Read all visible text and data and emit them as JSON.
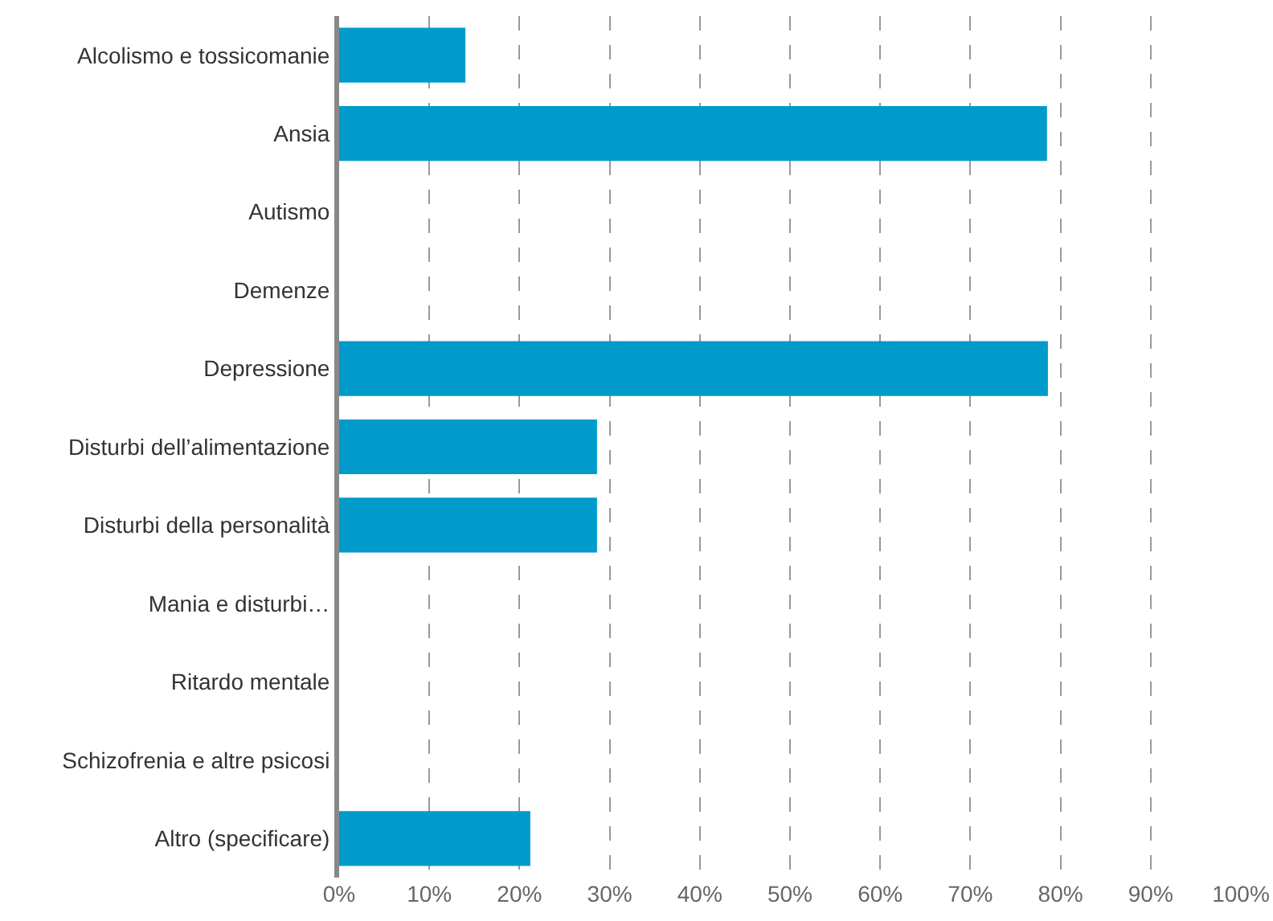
{
  "chart_data": {
    "type": "bar",
    "orientation": "horizontal",
    "categories": [
      "Alcolismo e tossicomanie",
      "Ansia",
      "Autismo",
      "Demenze",
      "Depressione",
      "Disturbi dell’alimentazione",
      "Disturbi della personalità",
      "Mania e disturbi…",
      "Ritardo mentale",
      "Schizofrenia e altre psicosi",
      "Altro (specificare)"
    ],
    "values": [
      14.0,
      78.5,
      0,
      0,
      78.6,
      28.6,
      28.6,
      0,
      0,
      0,
      21.2
    ],
    "color": "#009bcb",
    "xlim": [
      0,
      100
    ],
    "xticks": [
      {
        "value": 0,
        "label": "0%"
      },
      {
        "value": 10,
        "label": "10%"
      },
      {
        "value": 20,
        "label": "20%"
      },
      {
        "value": 30,
        "label": "30%"
      },
      {
        "value": 40,
        "label": "40%"
      },
      {
        "value": 50,
        "label": "50%"
      },
      {
        "value": 60,
        "label": "60%"
      },
      {
        "value": 70,
        "label": "70%"
      },
      {
        "value": 80,
        "label": "80%"
      },
      {
        "value": 90,
        "label": "90%"
      },
      {
        "value": 100,
        "label": "100%"
      }
    ],
    "grid": "x"
  }
}
